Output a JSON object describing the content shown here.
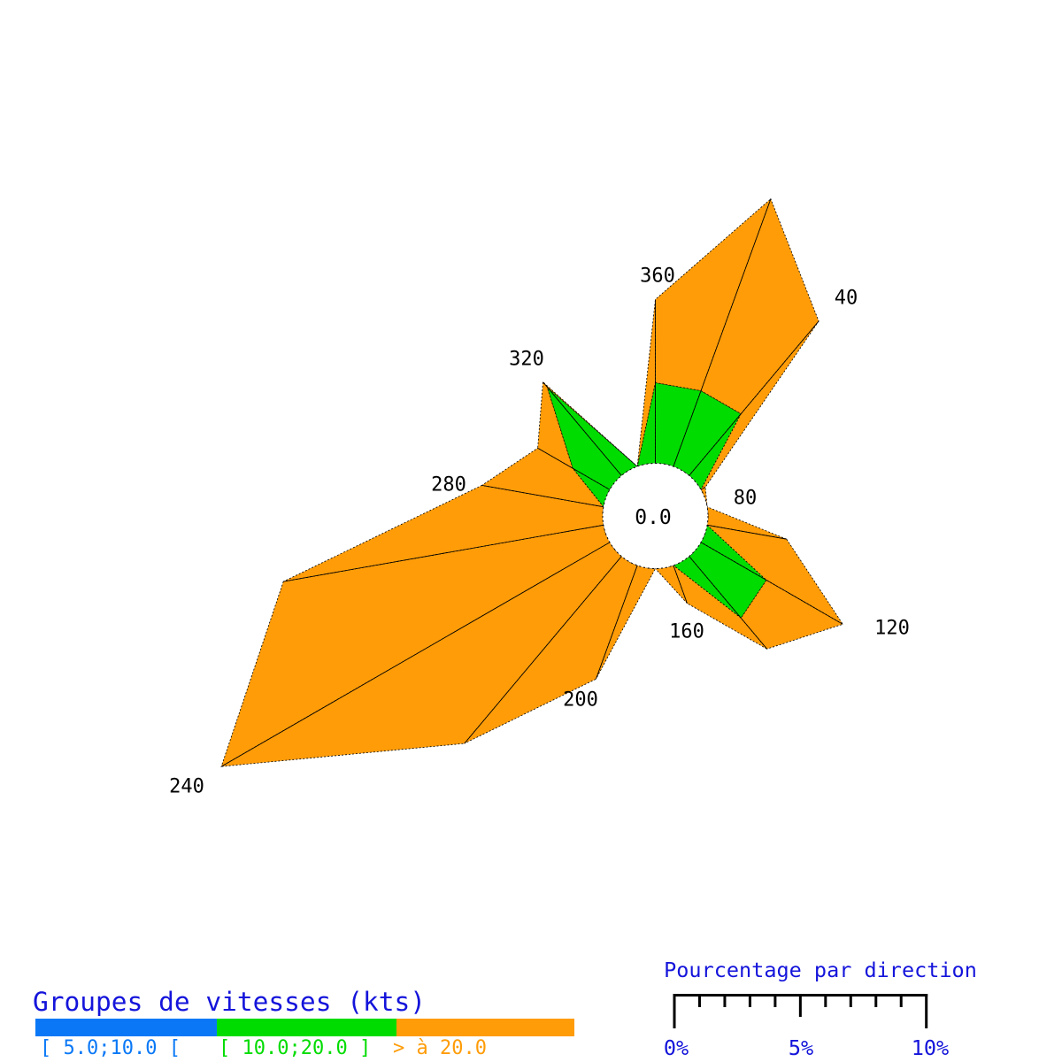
{
  "chart_data": {
    "type": "windrose-stacked-polar",
    "calm_center_label": "0.0",
    "unit": "%",
    "directions_deg": [
      20,
      40,
      60,
      80,
      100,
      120,
      140,
      160,
      180,
      200,
      220,
      240,
      260,
      280,
      300,
      320,
      340,
      360
    ],
    "series": [
      {
        "name": "[ 5.0;10.0 [",
        "color": "#0A78F6",
        "values": [
          0,
          0,
          0,
          0,
          0,
          0,
          0,
          0,
          0,
          0,
          0,
          0,
          0,
          0,
          0,
          0,
          0,
          0
        ]
      },
      {
        "name": "[ 10.0;20.0 ]",
        "color": "#00DC00",
        "values": [
          3.2,
          3.2,
          0,
          0,
          0,
          3.0,
          3.2,
          0,
          0,
          0,
          0,
          0,
          0,
          0,
          1.7,
          4.6,
          0,
          3.2
        ]
      },
      {
        "name": "> à 20.0",
        "color": "#FF9C08",
        "values": [
          8.1,
          4.8,
          0.2,
          0,
          3.2,
          3.5,
          1.6,
          1.6,
          0,
          4.8,
          9.7,
          17.8,
          12.9,
          4.9,
          1.6,
          0.25,
          0,
          3.3
        ]
      }
    ],
    "totals_pct": [
      11.3,
      8.0,
      0.2,
      0.0,
      3.2,
      6.5,
      4.8,
      1.6,
      0.0,
      4.8,
      9.7,
      17.8,
      12.9,
      4.9,
      3.3,
      4.85,
      0.0,
      6.5
    ],
    "labeled_directions": [
      "40",
      "80",
      "120",
      "160",
      "200",
      "240",
      "280",
      "320",
      "360"
    ],
    "legend": {
      "title": "Groupes de vitesses (kts)"
    },
    "scale": {
      "title": "Pourcentage par direction",
      "tick_labels": [
        "0%",
        "5%",
        "10%"
      ],
      "min_pct": 0,
      "max_pct": 10,
      "minor_step_pct": 1
    },
    "colors": {
      "text_blue": "#1414DB",
      "outline": "#000000"
    }
  }
}
